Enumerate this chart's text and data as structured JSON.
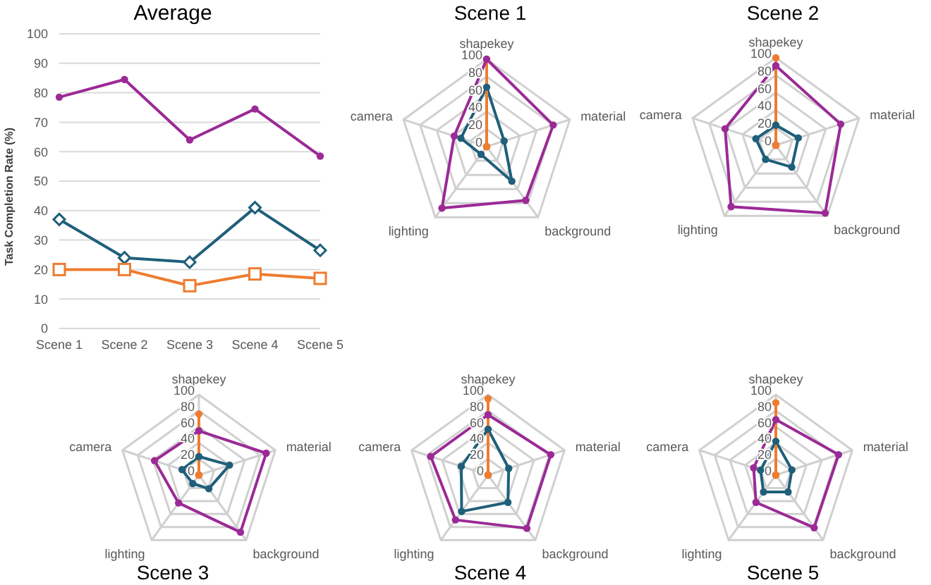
{
  "chart_data": [
    {
      "type": "line",
      "title": "Average",
      "ylabel": "Task Completion Rate (%)",
      "categories": [
        "Scene 1",
        "Scene 2",
        "Scene 3",
        "Scene 4",
        "Scene 5"
      ],
      "ylim": [
        0,
        100
      ],
      "yticks": [
        0,
        10,
        20,
        30,
        40,
        50,
        60,
        70,
        80,
        90,
        100
      ],
      "grid": "y",
      "legend": false,
      "series": [
        {
          "color": "#1f5f7a",
          "marker": "diamond",
          "values": [
            37,
            24,
            22.5,
            41,
            26.5
          ]
        },
        {
          "color": "#ed7d31",
          "marker": "square",
          "values": [
            20,
            20,
            14.5,
            18.5,
            17
          ]
        },
        {
          "color": "#9b2a96",
          "marker": "circle",
          "values": [
            78.5,
            84.5,
            64,
            74.5,
            58.5
          ]
        }
      ]
    },
    {
      "type": "radar",
      "title": "Scene 1",
      "categories": [
        "shapekey",
        "material",
        "background",
        "lighting",
        "camera"
      ],
      "ylim": [
        0,
        100
      ],
      "yticks": [
        0,
        20,
        40,
        60,
        80,
        100
      ],
      "marker": "circle",
      "legend": false,
      "series": [
        {
          "color": "#1f5f7a",
          "values": [
            68,
            21,
            49,
            11,
            31
          ]
        },
        {
          "color": "#ed7d31",
          "values": [
            100,
            0,
            0,
            0,
            0
          ]
        },
        {
          "color": "#9b2a96",
          "values": [
            100,
            80,
            76,
            87,
            39
          ]
        }
      ]
    },
    {
      "type": "radar",
      "title": "Scene 2",
      "categories": [
        "shapekey",
        "material",
        "background",
        "lighting",
        "camera"
      ],
      "ylim": [
        0,
        100
      ],
      "yticks": [
        0,
        20,
        40,
        60,
        80,
        100
      ],
      "marker": "circle",
      "legend": false,
      "series": [
        {
          "color": "#1f5f7a",
          "values": [
            23,
            27,
            31,
            20,
            24
          ]
        },
        {
          "color": "#ed7d31",
          "values": [
            100,
            0,
            0,
            0,
            0
          ]
        },
        {
          "color": "#9b2a96",
          "values": [
            91,
            78,
            96,
            87,
            61
          ]
        }
      ]
    },
    {
      "type": "radar",
      "title": "Scene 3",
      "categories": [
        "shapekey",
        "material",
        "background",
        "lighting",
        "camera"
      ],
      "ylim": [
        0,
        100
      ],
      "yticks": [
        0,
        20,
        40,
        60,
        80,
        100
      ],
      "marker": "circle",
      "legend": false,
      "series": [
        {
          "color": "#1f5f7a",
          "values": [
            23,
            40,
            21,
            13,
            22
          ]
        },
        {
          "color": "#ed7d31",
          "values": [
            76,
            0,
            0,
            0,
            0
          ]
        },
        {
          "color": "#9b2a96",
          "values": [
            55,
            88,
            88,
            43,
            58
          ]
        }
      ]
    },
    {
      "type": "radar",
      "title": "Scene 4",
      "categories": [
        "shapekey",
        "material",
        "background",
        "lighting",
        "camera"
      ],
      "ylim": [
        0,
        100
      ],
      "yticks": [
        0,
        20,
        40,
        60,
        80,
        100
      ],
      "marker": "circle",
      "legend": false,
      "series": [
        {
          "color": "#1f5f7a",
          "values": [
            57,
            27,
            42,
            56,
            35
          ]
        },
        {
          "color": "#ed7d31",
          "values": [
            95,
            0,
            0,
            0,
            0
          ]
        },
        {
          "color": "#9b2a96",
          "values": [
            75,
            82,
            82,
            69,
            75
          ]
        }
      ]
    },
    {
      "type": "radar",
      "title": "Scene 5",
      "categories": [
        "shapekey",
        "material",
        "background",
        "lighting",
        "camera"
      ],
      "ylim": [
        0,
        100
      ],
      "yticks": [
        0,
        20,
        40,
        60,
        80,
        100
      ],
      "marker": "circle",
      "legend": false,
      "series": [
        {
          "color": "#1f5f7a",
          "values": [
            42,
            21,
            26,
            26,
            20
          ]
        },
        {
          "color": "#ed7d31",
          "values": [
            90,
            0,
            0,
            0,
            0
          ]
        },
        {
          "color": "#9b2a96",
          "values": [
            69,
            82,
            81,
            42,
            29
          ]
        }
      ]
    }
  ]
}
